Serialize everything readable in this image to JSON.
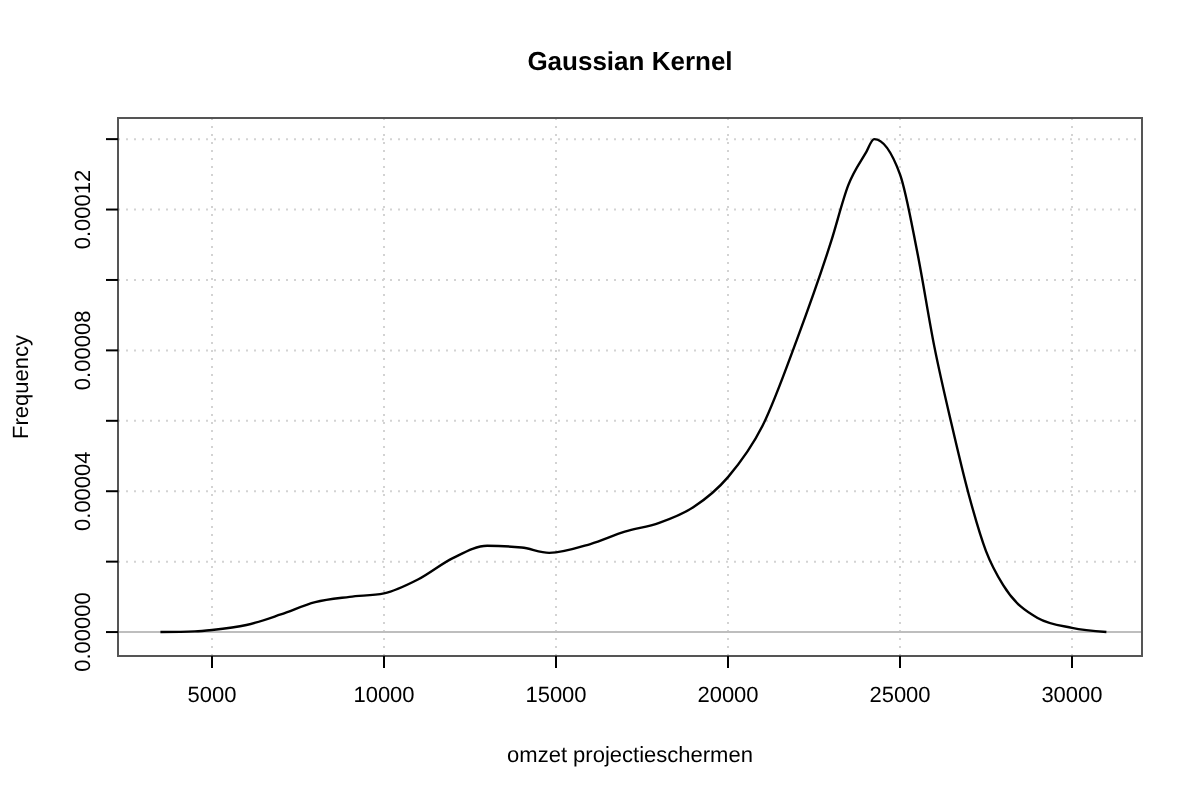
{
  "chart_data": {
    "type": "line",
    "title": "Gaussian Kernel",
    "xlabel": "omzet projectieschermen",
    "ylabel": "Frequency",
    "x": [
      3500,
      4500,
      5000,
      6000,
      7000,
      8000,
      9000,
      10000,
      11000,
      12000,
      13000,
      14000,
      14800,
      16000,
      17000,
      18000,
      19000,
      20000,
      21000,
      22000,
      23000,
      23500,
      24000,
      24250,
      25000,
      25500,
      26000,
      26500,
      27000,
      27500,
      28000,
      29000,
      30000,
      31000
    ],
    "series": [
      {
        "color": "#000000",
        "values": [
          0,
          2e-07,
          6e-07,
          2e-06,
          5e-06,
          8.5e-06,
          1e-05,
          1.1e-05,
          1.5e-05,
          2.1e-05,
          2.45e-05,
          2.4e-05,
          2.25e-05,
          2.5e-05,
          2.85e-05,
          3.1e-05,
          3.55e-05,
          4.4e-05,
          5.85e-05,
          8.3e-05,
          0.000111,
          0.000127,
          0.000136,
          0.00014,
          0.00013,
          0.000108,
          8.1e-05,
          5.9e-05,
          3.9e-05,
          2.3e-05,
          1.33e-05,
          4e-06,
          1.2e-06,
          0
        ]
      }
    ],
    "xlim": [
      2267,
      32035
    ],
    "ylim": [
      -6.8e-06,
      0.000146
    ],
    "xticks": [
      5000,
      10000,
      15000,
      20000,
      25000,
      30000
    ],
    "yticks": [
      {
        "value": 0,
        "label": "0.00000"
      },
      {
        "value": 2e-05,
        "label": null
      },
      {
        "value": 4e-05,
        "label": "0.00004"
      },
      {
        "value": 6e-05,
        "label": null
      },
      {
        "value": 8e-05,
        "label": "0.00008"
      },
      {
        "value": 0.0001,
        "label": null
      },
      {
        "value": 0.00012,
        "label": "0.00012"
      },
      {
        "value": 0.00014,
        "label": null
      }
    ],
    "grid": true,
    "line_style": "solid",
    "marker": "none",
    "ref_lines": [
      {
        "axis": "y",
        "value": 0,
        "color": "#bebebe",
        "line_style": "solid"
      }
    ]
  }
}
